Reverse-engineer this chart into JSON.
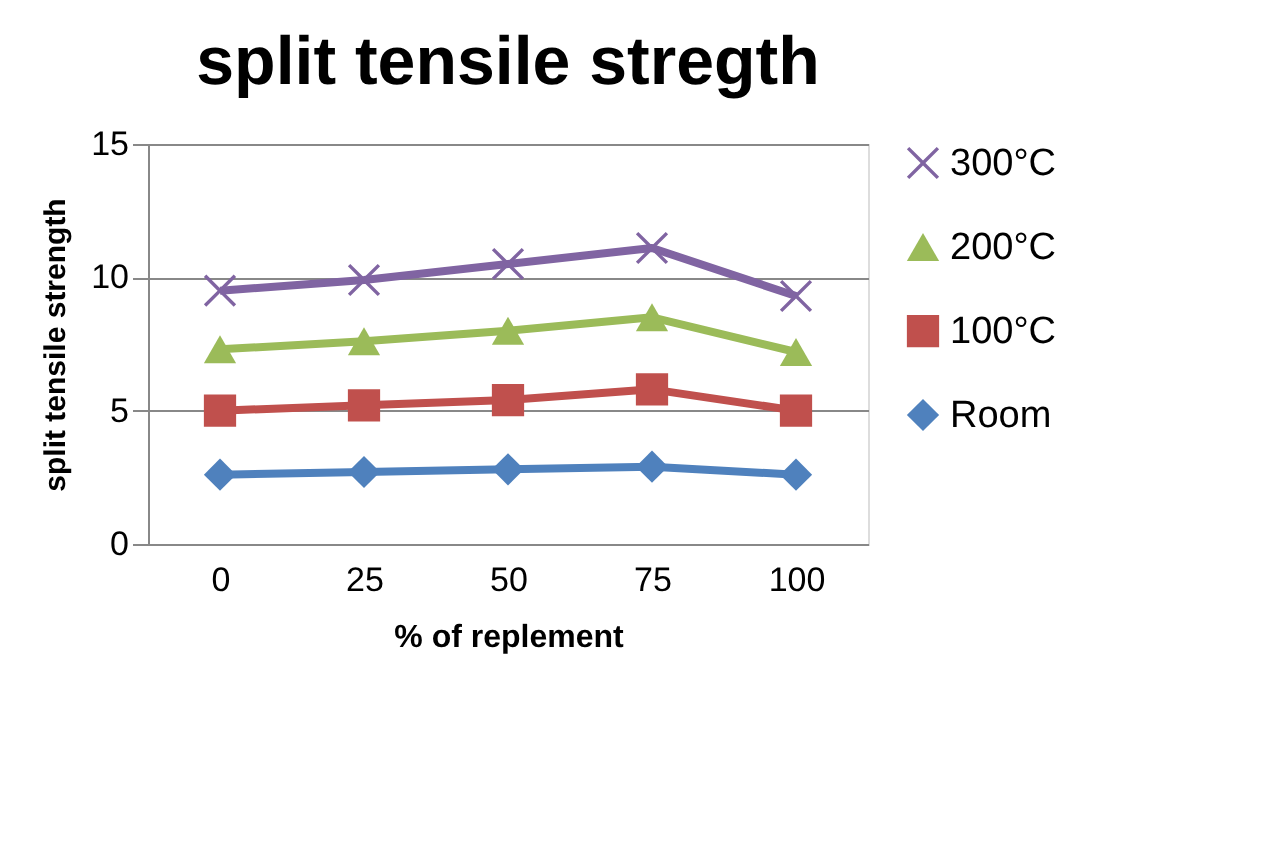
{
  "chart_data": {
    "type": "line",
    "title": "split tensile stregth",
    "xlabel": "% of replement",
    "ylabel": "split tensile strength",
    "categories": [
      "0",
      "25",
      "50",
      "75",
      "100"
    ],
    "series": [
      {
        "name": "300°C",
        "color": "#8064a2",
        "marker": "cross",
        "values": [
          9.5,
          9.9,
          10.5,
          11.1,
          9.3
        ]
      },
      {
        "name": "200°C",
        "color": "#9bbb59",
        "marker": "triangle",
        "values": [
          7.3,
          7.6,
          8.0,
          8.5,
          7.2
        ]
      },
      {
        "name": "100°C",
        "color": "#c0504d",
        "marker": "square",
        "values": [
          5.0,
          5.2,
          5.4,
          5.8,
          5.0
        ]
      },
      {
        "name": "Room",
        "color": "#4f81bd",
        "marker": "diamond",
        "values": [
          2.6,
          2.7,
          2.8,
          2.9,
          2.6
        ]
      }
    ],
    "ylim": [
      0,
      15
    ],
    "yticks": [
      0,
      5,
      10,
      15
    ],
    "grid": "y",
    "legend": "right"
  }
}
